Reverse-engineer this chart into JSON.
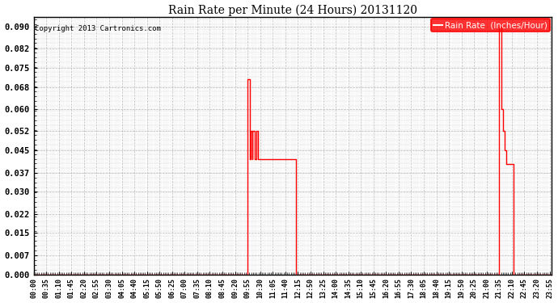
{
  "title": "Rain Rate per Minute (24 Hours) 20131120",
  "copyright": "Copyright 2013 Cartronics.com",
  "legend_label": "Rain Rate  (Inches/Hour)",
  "line_color": "#ff0000",
  "bg_color": "#ffffff",
  "grid_color": "#b0b0b0",
  "yticks": [
    0.0,
    0.007,
    0.015,
    0.022,
    0.03,
    0.037,
    0.045,
    0.052,
    0.06,
    0.068,
    0.075,
    0.082,
    0.09
  ],
  "ylim": [
    0.0,
    0.0935
  ],
  "xlim": [
    0,
    1440
  ],
  "xtick_positions": [
    0,
    35,
    70,
    105,
    140,
    175,
    210,
    245,
    280,
    315,
    350,
    385,
    420,
    455,
    490,
    525,
    560,
    595,
    630,
    665,
    700,
    735,
    770,
    805,
    840,
    875,
    910,
    945,
    980,
    1015,
    1050,
    1085,
    1120,
    1155,
    1190,
    1225,
    1260,
    1295,
    1330,
    1365,
    1400,
    1435
  ],
  "xtick_labels": [
    "00:00",
    "00:35",
    "01:10",
    "01:45",
    "02:20",
    "02:55",
    "03:30",
    "04:05",
    "04:40",
    "05:15",
    "05:50",
    "06:25",
    "07:00",
    "07:35",
    "08:10",
    "08:45",
    "09:20",
    "09:55",
    "10:30",
    "11:05",
    "11:40",
    "12:15",
    "12:50",
    "13:25",
    "14:00",
    "14:35",
    "15:10",
    "15:45",
    "16:20",
    "16:55",
    "17:30",
    "18:05",
    "18:40",
    "19:15",
    "19:50",
    "20:25",
    "21:00",
    "21:35",
    "22:10",
    "22:45",
    "23:20",
    "23:55"
  ],
  "rain_data": [
    [
      0,
      0.0
    ],
    [
      595,
      0.0
    ],
    [
      595,
      0.071
    ],
    [
      601,
      0.042
    ],
    [
      604,
      0.052
    ],
    [
      607,
      0.042
    ],
    [
      609,
      0.052
    ],
    [
      612,
      0.052
    ],
    [
      614,
      0.042
    ],
    [
      617,
      0.042
    ],
    [
      619,
      0.052
    ],
    [
      621,
      0.052
    ],
    [
      624,
      0.042
    ],
    [
      630,
      0.042
    ],
    [
      640,
      0.042
    ],
    [
      650,
      0.042
    ],
    [
      660,
      0.042
    ],
    [
      670,
      0.042
    ],
    [
      680,
      0.042
    ],
    [
      690,
      0.042
    ],
    [
      700,
      0.042
    ],
    [
      710,
      0.042
    ],
    [
      720,
      0.042
    ],
    [
      730,
      0.0
    ],
    [
      730,
      0.0
    ],
    [
      1295,
      0.0
    ],
    [
      1295,
      0.09
    ],
    [
      1300,
      0.06
    ],
    [
      1305,
      0.052
    ],
    [
      1310,
      0.045
    ],
    [
      1315,
      0.04
    ],
    [
      1320,
      0.04
    ],
    [
      1325,
      0.04
    ],
    [
      1330,
      0.04
    ],
    [
      1335,
      0.0
    ],
    [
      1440,
      0.0
    ]
  ]
}
